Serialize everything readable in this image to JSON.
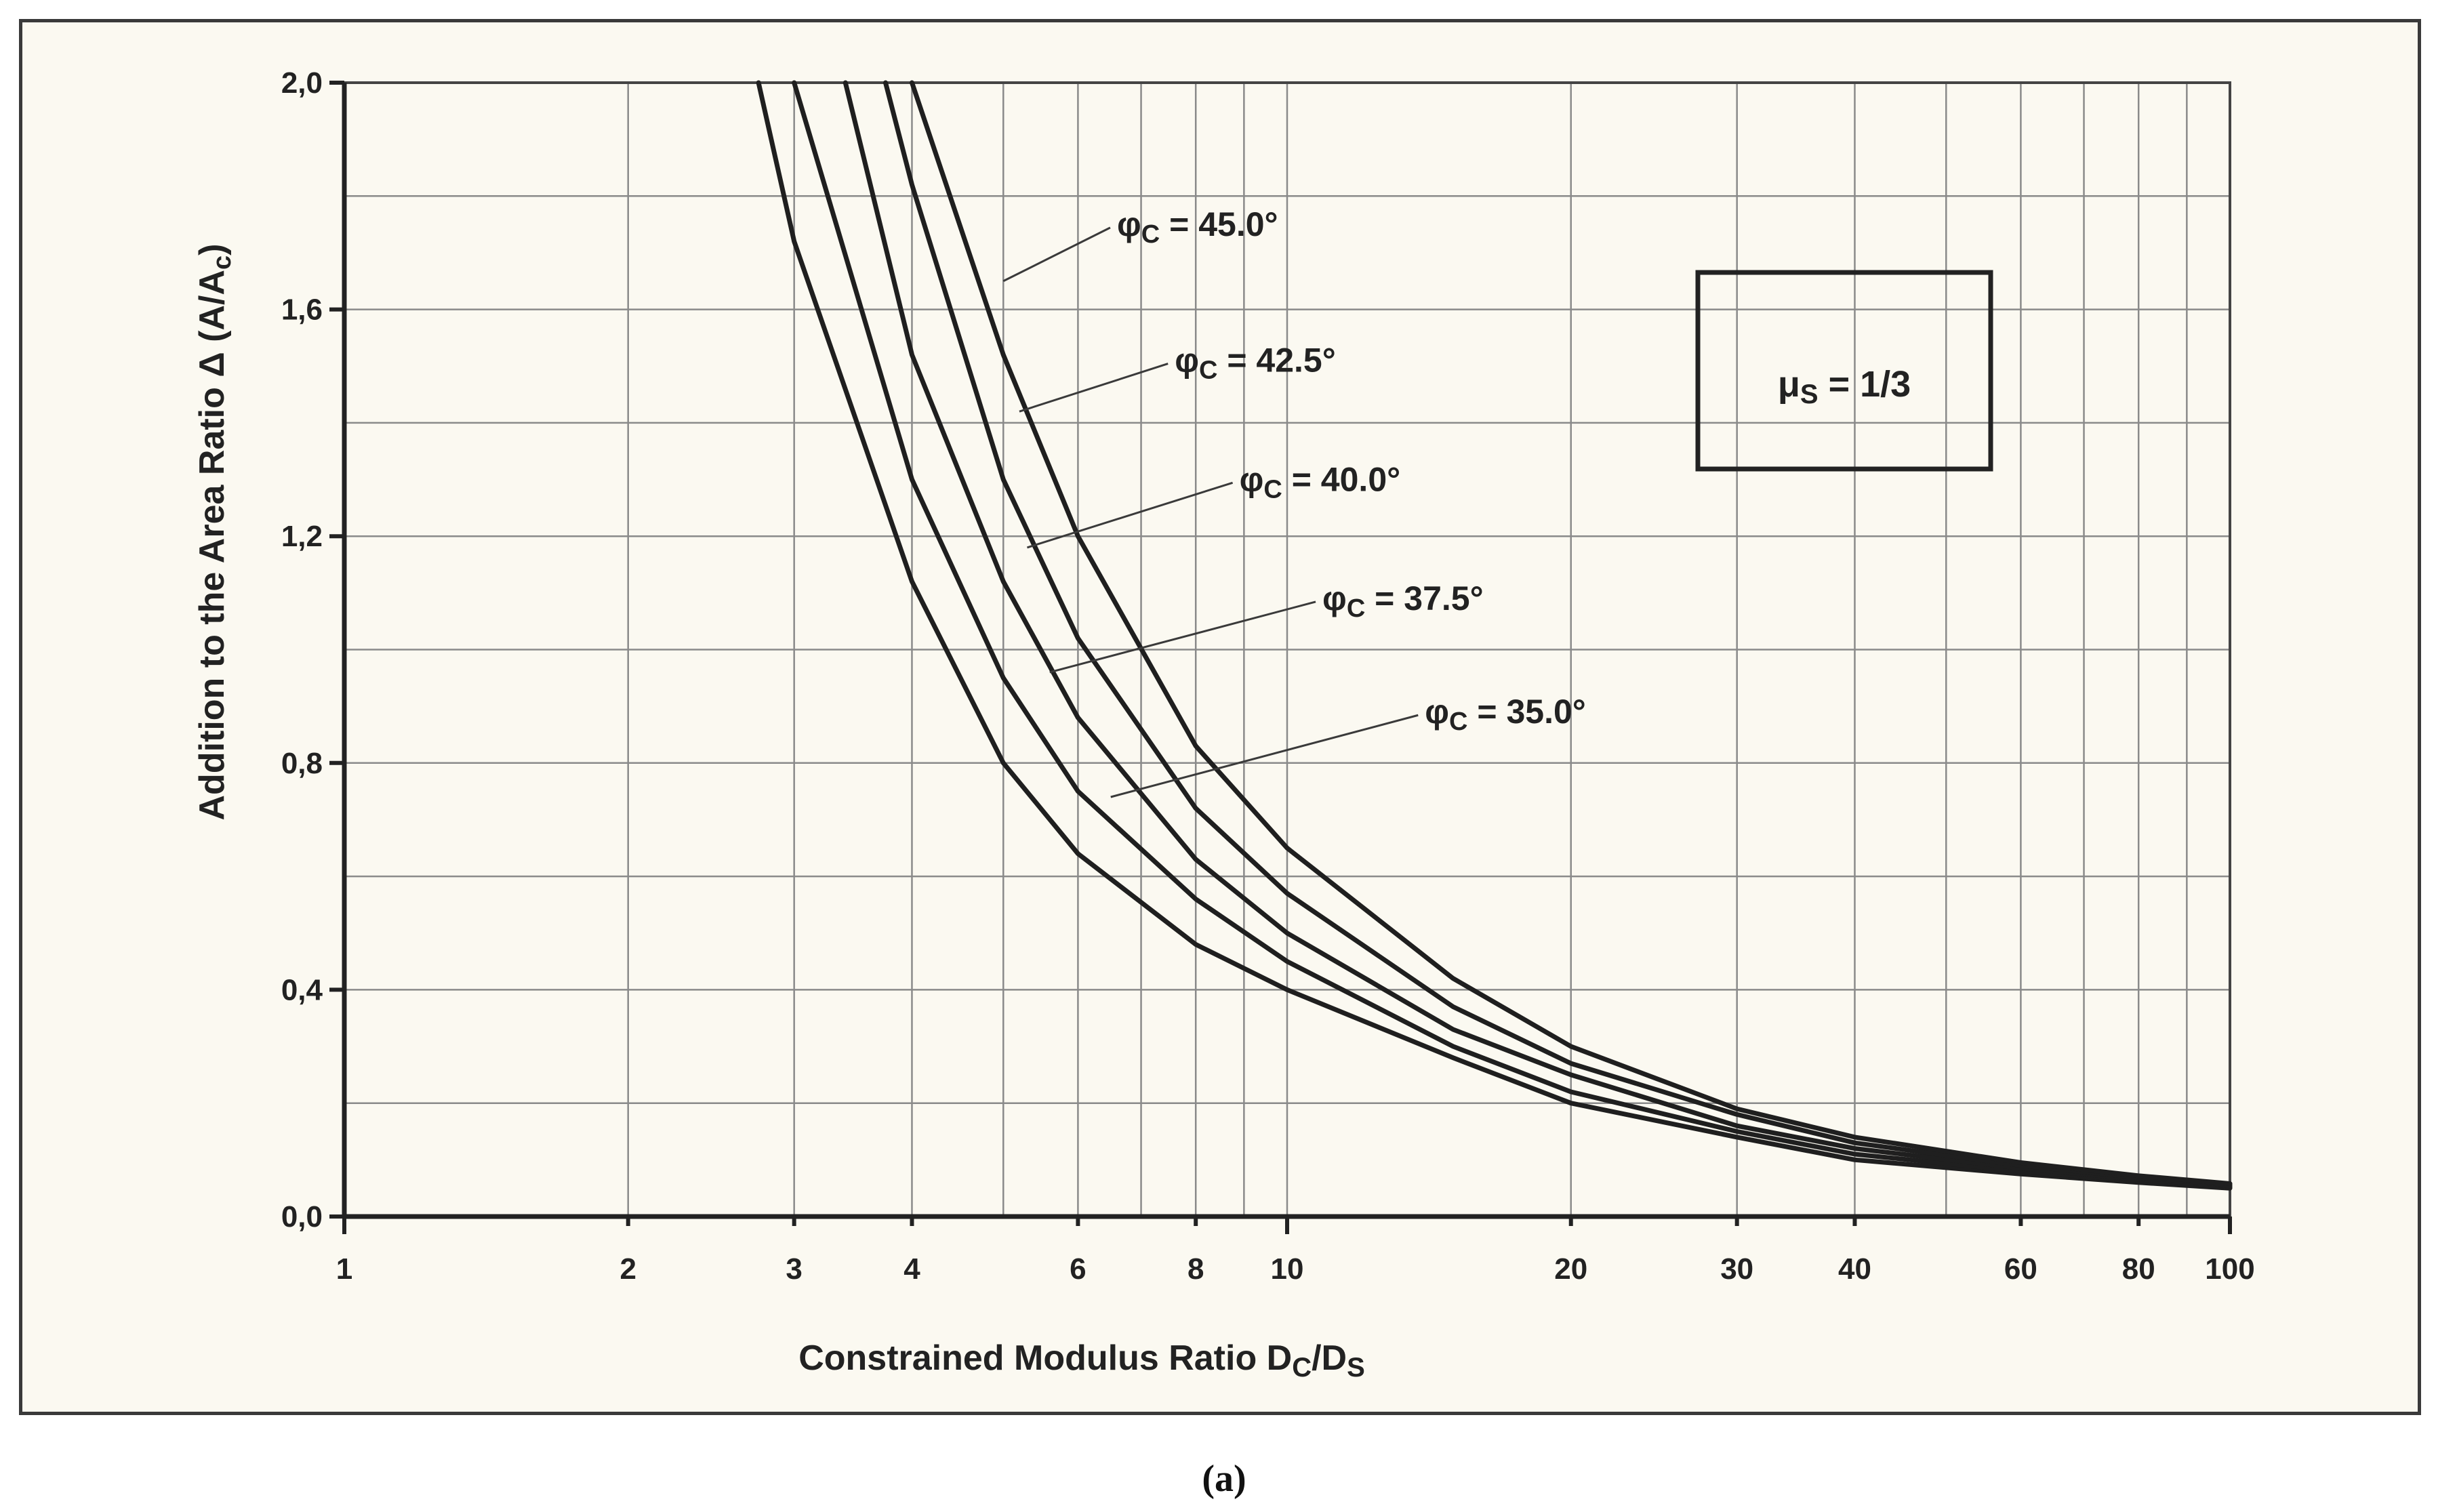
{
  "figure": {
    "caption": "(a)"
  },
  "chart_data": {
    "type": "line",
    "title": "",
    "xlabel": {
      "main": "Constrained Modulus Ratio D",
      "sub1": "C",
      "mid": "/D",
      "sub2": "S"
    },
    "ylabel": {
      "main": "Addition to the Area Ratio ",
      "delta": "Δ",
      "open": " (A/A",
      "sub": "c",
      "close": ")"
    },
    "x_scale": "log",
    "xlim": [
      1,
      100
    ],
    "ylim": [
      0,
      2.0
    ],
    "x_ticks": [
      {
        "value": 1,
        "label": "1"
      },
      {
        "value": 2,
        "label": "2"
      },
      {
        "value": 3,
        "label": "3"
      },
      {
        "value": 4,
        "label": "4"
      },
      {
        "value": 6,
        "label": "6"
      },
      {
        "value": 8,
        "label": "8"
      },
      {
        "value": 10,
        "label": "10"
      },
      {
        "value": 20,
        "label": "20"
      },
      {
        "value": 30,
        "label": "30"
      },
      {
        "value": 40,
        "label": "40"
      },
      {
        "value": 60,
        "label": "60"
      },
      {
        "value": 80,
        "label": "80"
      },
      {
        "value": 100,
        "label": "100"
      }
    ],
    "x_grid": [
      1,
      2,
      3,
      4,
      5,
      6,
      7,
      8,
      9,
      10,
      20,
      30,
      40,
      50,
      60,
      70,
      80,
      90,
      100
    ],
    "y_ticks": [
      {
        "value": 0.0,
        "label": "0,0"
      },
      {
        "value": 0.4,
        "label": "0,4"
      },
      {
        "value": 0.8,
        "label": "0,8"
      },
      {
        "value": 1.2,
        "label": "1,2"
      },
      {
        "value": 1.6,
        "label": "1,6"
      },
      {
        "value": 2.0,
        "label": "2,0"
      }
    ],
    "y_grid": [
      0.0,
      0.2,
      0.4,
      0.6,
      0.8,
      1.0,
      1.2,
      1.4,
      1.6,
      1.8,
      2.0
    ],
    "grid": true,
    "series": [
      {
        "name": "φc = 35.0°",
        "label_main": "φ",
        "label_sub": "C",
        "label_rest": " = 35.0°",
        "x": [
          2.75,
          3,
          4,
          5,
          6,
          8,
          10,
          15,
          20,
          30,
          40,
          60,
          80,
          100
        ],
        "y": [
          2.0,
          1.72,
          1.12,
          0.8,
          0.64,
          0.48,
          0.4,
          0.28,
          0.2,
          0.14,
          0.1,
          0.075,
          0.06,
          0.05
        ]
      },
      {
        "name": "φc = 37.5°",
        "label_main": "φ",
        "label_sub": "C",
        "label_rest": " = 37.5°",
        "x": [
          3.0,
          4,
          5,
          6,
          8,
          10,
          15,
          20,
          30,
          40,
          60,
          80,
          100
        ],
        "y": [
          2.0,
          1.3,
          0.95,
          0.75,
          0.56,
          0.45,
          0.3,
          0.22,
          0.15,
          0.11,
          0.08,
          0.063,
          0.052
        ]
      },
      {
        "name": "φc = 40.0°",
        "label_main": "φ",
        "label_sub": "C",
        "label_rest": " = 40.0°",
        "x": [
          3.4,
          4,
          5,
          6,
          8,
          10,
          15,
          20,
          30,
          40,
          60,
          80,
          100
        ],
        "y": [
          2.0,
          1.52,
          1.12,
          0.88,
          0.63,
          0.5,
          0.33,
          0.25,
          0.16,
          0.12,
          0.085,
          0.066,
          0.054
        ]
      },
      {
        "name": "φc = 42.5°",
        "label_main": "φ",
        "label_sub": "C",
        "label_rest": " = 42.5°",
        "x": [
          3.75,
          4,
          5,
          6,
          8,
          10,
          15,
          20,
          30,
          40,
          60,
          80,
          100
        ],
        "y": [
          2.0,
          1.82,
          1.3,
          1.02,
          0.72,
          0.57,
          0.37,
          0.27,
          0.18,
          0.13,
          0.09,
          0.069,
          0.056
        ]
      },
      {
        "name": "φc = 45.0°",
        "label_main": "φ",
        "label_sub": "C",
        "label_rest": " = 45.0°",
        "x": [
          4.0,
          5,
          6,
          8,
          10,
          15,
          20,
          30,
          40,
          60,
          80,
          100
        ],
        "y": [
          2.0,
          1.52,
          1.2,
          0.83,
          0.65,
          0.42,
          0.3,
          0.19,
          0.14,
          0.095,
          0.072,
          0.058
        ]
      }
    ],
    "annotations": [
      {
        "series": "φc = 45.0°",
        "pointer_x": 5.0,
        "pointer_y": 1.65,
        "text_x": 6.6,
        "text_y": 1.73
      },
      {
        "series": "φc = 42.5°",
        "pointer_x": 5.2,
        "pointer_y": 1.42,
        "text_x": 7.6,
        "text_y": 1.49
      },
      {
        "series": "φc = 40.0°",
        "pointer_x": 5.3,
        "pointer_y": 1.18,
        "text_x": 8.9,
        "text_y": 1.28
      },
      {
        "series": "φc = 37.5°",
        "pointer_x": 5.6,
        "pointer_y": 0.96,
        "text_x": 10.9,
        "text_y": 1.07
      },
      {
        "series": "φc = 35.0°",
        "pointer_x": 6.5,
        "pointer_y": 0.74,
        "text_x": 14.0,
        "text_y": 0.87
      }
    ],
    "legend_box": {
      "main": "μ",
      "sub": "S",
      "rest": " = 1/3",
      "position": "upper-right"
    }
  }
}
